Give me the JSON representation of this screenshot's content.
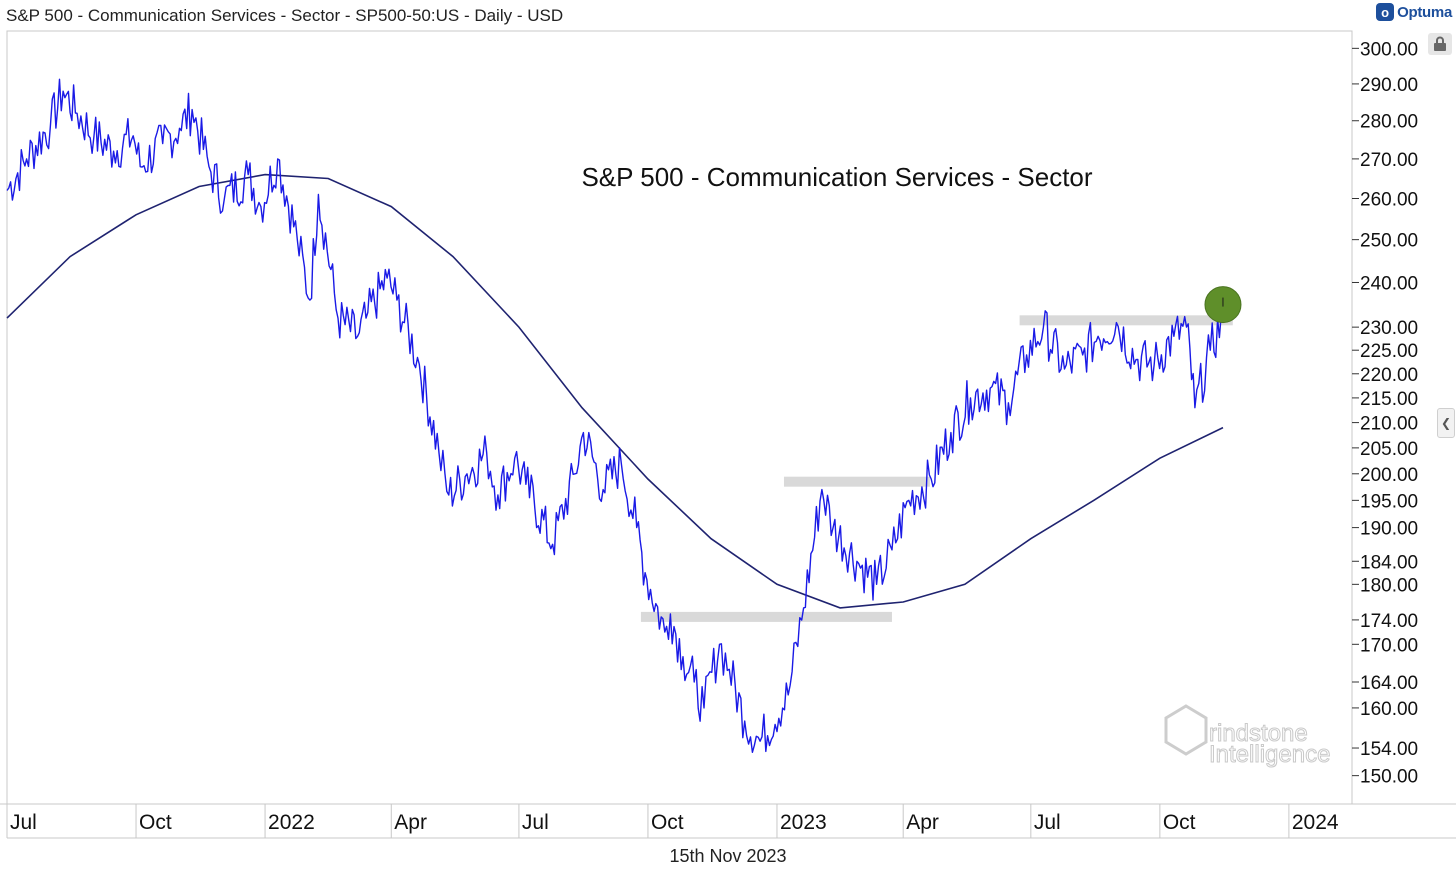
{
  "header": {
    "title": "S&P 500 - Communication Services - Sector - SP500-50:US - Daily - USD",
    "brand": "Optuma"
  },
  "footer": {
    "date": "15th Nov 2023"
  },
  "watermark": {
    "line1": "rindstone",
    "line2": "Intelligence"
  },
  "colors": {
    "price": "#1a1ae6",
    "moving_average": "#1f2370",
    "zones": "#d9d9d9",
    "marker": "#5f8f2a",
    "brand": "#1d4f9c"
  },
  "icons": [
    "lock-icon",
    "chevron-left-icon",
    "optuma-logo-icon"
  ],
  "chart_data": {
    "type": "line",
    "title": "S&P 500 - Communication Services - Sector",
    "xlabel": "",
    "ylabel": "",
    "scale": "log",
    "ylim": [
      146,
      305
    ],
    "xlim": [
      "2021-07-01",
      "2024-02-15"
    ],
    "y_ticks": [
      "300.00",
      "290.00",
      "280.00",
      "270.00",
      "260.00",
      "250.00",
      "240.00",
      "230.00",
      "225.00",
      "220.00",
      "215.00",
      "210.00",
      "205.00",
      "200.00",
      "195.00",
      "190.00",
      "184.00",
      "180.00",
      "174.00",
      "170.00",
      "164.00",
      "160.00",
      "154.00",
      "150.00"
    ],
    "x_ticks": [
      {
        "label": "Jul",
        "date": "2021-07-01"
      },
      {
        "label": "Oct",
        "date": "2021-10-01"
      },
      {
        "label": "2022",
        "date": "2022-01-01"
      },
      {
        "label": "Apr",
        "date": "2022-04-01"
      },
      {
        "label": "Jul",
        "date": "2022-07-01"
      },
      {
        "label": "Oct",
        "date": "2022-10-01"
      },
      {
        "label": "2023",
        "date": "2023-01-01"
      },
      {
        "label": "Apr",
        "date": "2023-04-01"
      },
      {
        "label": "Jul",
        "date": "2023-07-01"
      },
      {
        "label": "Oct",
        "date": "2023-10-01"
      },
      {
        "label": "2024",
        "date": "2024-01-01"
      }
    ],
    "series": [
      {
        "style": "price",
        "x": [
          "2021-07-01",
          "2021-07-15",
          "2021-08-01",
          "2021-08-10",
          "2021-08-20",
          "2021-09-01",
          "2021-09-15",
          "2021-09-29",
          "2021-10-04",
          "2021-10-20",
          "2021-11-01",
          "2021-11-10",
          "2021-11-22",
          "2021-12-03",
          "2021-12-20",
          "2021-12-29",
          "2022-01-10",
          "2022-01-24",
          "2022-02-02",
          "2022-02-08",
          "2022-02-22",
          "2022-03-08",
          "2022-03-14",
          "2022-03-29",
          "2022-04-05",
          "2022-04-21",
          "2022-05-05",
          "2022-05-12",
          "2022-05-25",
          "2022-06-08",
          "2022-06-16",
          "2022-06-28",
          "2022-07-06",
          "2022-07-25",
          "2022-08-10",
          "2022-08-16",
          "2022-08-30",
          "2022-09-12",
          "2022-09-23",
          "2022-09-29",
          "2022-10-13",
          "2022-10-17",
          "2022-10-26",
          "2022-11-03",
          "2022-11-10",
          "2022-11-21",
          "2022-11-28",
          "2022-12-09",
          "2022-12-20",
          "2023-01-09",
          "2023-01-20",
          "2023-02-02",
          "2023-02-10",
          "2023-02-27",
          "2023-03-13",
          "2023-03-24",
          "2023-04-05",
          "2023-04-21",
          "2023-05-05",
          "2023-05-19",
          "2023-06-02",
          "2023-06-15",
          "2023-06-28",
          "2023-07-10",
          "2023-07-25",
          "2023-08-07",
          "2023-08-18",
          "2023-08-31",
          "2023-09-14",
          "2023-09-27",
          "2023-10-11",
          "2023-10-20",
          "2023-10-26",
          "2023-11-06",
          "2023-11-15"
        ],
        "y": [
          262,
          270,
          279,
          288,
          282,
          276,
          272,
          276,
          268,
          274,
          278,
          283,
          268,
          260,
          266,
          258,
          270,
          250,
          236,
          261,
          232,
          228,
          232,
          241,
          236,
          222,
          204,
          196,
          200,
          204,
          196,
          203,
          198,
          187,
          200,
          208,
          197,
          202,
          190,
          182,
          172,
          175,
          168,
          164,
          160,
          170,
          166,
          158,
          155,
          162,
          176,
          197,
          190,
          184,
          180,
          186,
          195,
          199,
          208,
          215,
          217,
          214,
          224,
          230,
          221,
          224,
          228,
          231,
          223,
          222,
          228,
          230,
          213,
          225,
          232
        ]
      },
      {
        "style": "moving_average",
        "x": [
          "2021-07-01",
          "2021-08-15",
          "2021-10-01",
          "2021-11-15",
          "2022-01-01",
          "2022-02-15",
          "2022-04-01",
          "2022-05-15",
          "2022-07-01",
          "2022-08-15",
          "2022-10-01",
          "2022-11-15",
          "2023-01-01",
          "2023-02-15",
          "2023-04-01",
          "2023-05-15",
          "2023-07-01",
          "2023-08-15",
          "2023-10-01",
          "2023-11-15"
        ],
        "y": [
          232,
          246,
          256,
          263,
          266,
          265,
          258,
          246,
          230,
          213,
          199,
          188,
          180,
          176,
          177,
          180,
          188,
          195,
          203,
          209
        ]
      }
    ],
    "zones": [
      {
        "label": "",
        "y": 174.5,
        "x_start": "2022-09-26",
        "x_end": "2023-03-24"
      },
      {
        "label": "",
        "y": 198.5,
        "x_start": "2023-01-06",
        "x_end": "2023-04-20"
      },
      {
        "label": "",
        "y": 231.5,
        "x_start": "2023-06-23",
        "x_end": "2023-11-22"
      }
    ],
    "marker": {
      "label": "",
      "x": "2023-11-15",
      "y": 235
    },
    "grid": false,
    "legend": "none"
  }
}
